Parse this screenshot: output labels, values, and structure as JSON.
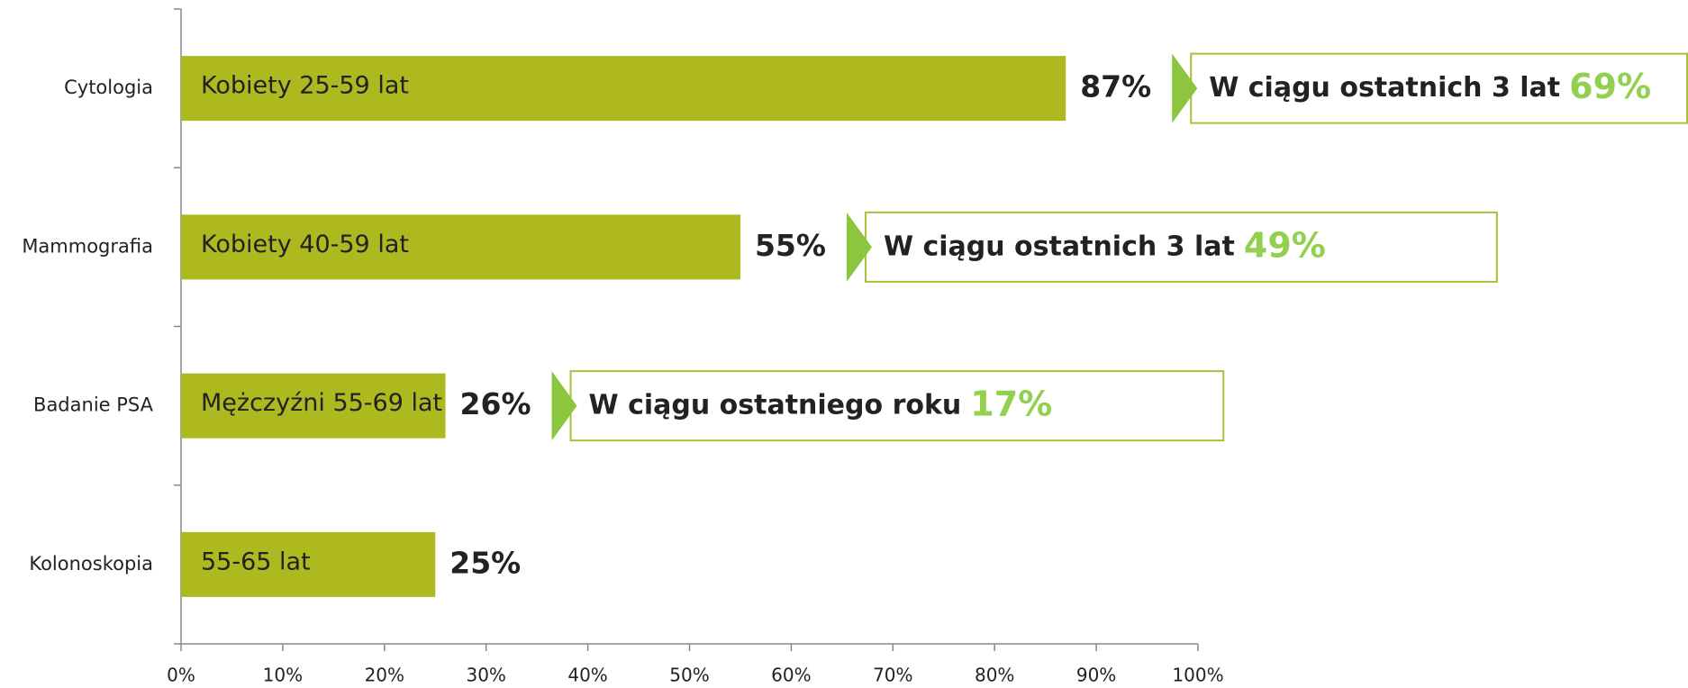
{
  "chart_data": {
    "type": "hbar",
    "categories": [
      "Cytologia",
      "Mammografia",
      "Badanie PSA",
      "Kolonoskopia"
    ],
    "values": [
      87,
      55,
      26,
      25
    ],
    "value_labels": [
      "87%",
      "55%",
      "26%",
      "25%"
    ],
    "bar_labels": [
      "Kobiety 25-59 lat",
      "Kobiety 40-59 lat",
      "Mężczyźni 55-69 lat",
      "55-65 lat"
    ],
    "color": "#adb91e",
    "label_color": "#92d050",
    "callouts": [
      {
        "label": "W ciągu ostatnich 3 lat",
        "value": 69,
        "value_label": "69%"
      },
      {
        "label": "W ciągu ostatnich 3 lat",
        "value": 49,
        "value_label": "49%"
      },
      {
        "label": "W ciągu ostatniego roku",
        "value": 17,
        "value_label": "17%"
      },
      null
    ],
    "xlim": [
      0,
      100
    ],
    "xticks": [
      {
        "value": 0,
        "label": "0%"
      },
      {
        "value": 10,
        "label": "10%"
      },
      {
        "value": 20,
        "label": "20%"
      },
      {
        "value": 30,
        "label": "30%"
      },
      {
        "value": 40,
        "label": "40%"
      },
      {
        "value": 50,
        "label": "50%"
      },
      {
        "value": 60,
        "label": "60%"
      },
      {
        "value": 70,
        "label": "70%"
      },
      {
        "value": 80,
        "label": "80%"
      },
      {
        "value": 90,
        "label": "90%"
      },
      {
        "value": 100,
        "label": "100%"
      }
    ],
    "grid": false
  }
}
